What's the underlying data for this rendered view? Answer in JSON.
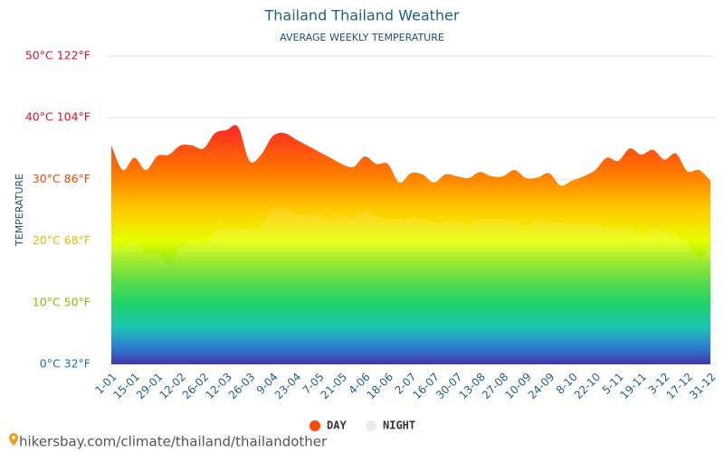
{
  "chart_data": {
    "type": "area",
    "title": "Thailand Thailand Weather",
    "subtitle": "AVERAGE WEEKLY TEMPERATURE",
    "y_label": "TEMPERATURE",
    "categories": [
      "1-01",
      null,
      "15-01",
      null,
      "29-01",
      null,
      "12-02",
      null,
      "26-02",
      null,
      "12-03",
      null,
      "26-03",
      null,
      "9-04",
      null,
      "23-04",
      null,
      "7-05",
      null,
      "21-05",
      null,
      "4-06",
      null,
      "18-06",
      null,
      "2-07",
      null,
      "16-07",
      null,
      "30-07",
      null,
      "13-08",
      null,
      "27-08",
      null,
      "10-09",
      null,
      "24-09",
      null,
      "8-10",
      null,
      "22-10",
      null,
      "5-11",
      null,
      "19-11",
      null,
      "3-12",
      null,
      "17-12",
      null,
      "31-12"
    ],
    "series": [
      {
        "name": "DAY",
        "color": "#ff4a00",
        "values": [
          35.5,
          31.5,
          33.5,
          31.5,
          33.8,
          34,
          35.5,
          35.5,
          35,
          37.5,
          38,
          38.5,
          33,
          34,
          37,
          37.5,
          36.5,
          35.5,
          34.5,
          33.5,
          32.5,
          32,
          33.7,
          32.5,
          32.5,
          29.5,
          31,
          30.8,
          29.5,
          30.8,
          30.5,
          30.2,
          31.2,
          30.5,
          30.5,
          31.5,
          30.2,
          30.3,
          31,
          29,
          29.8,
          30.5,
          31.5,
          33.5,
          33,
          35,
          34,
          34.8,
          33.2,
          34.2,
          31.3,
          31.5,
          29.8
        ]
      },
      {
        "name": "NIGHT",
        "color": "#e8ecf0",
        "values": [
          19.5,
          19,
          20,
          18,
          18,
          16.3,
          19,
          20,
          19.5,
          21.5,
          22,
          22,
          22,
          22.5,
          25,
          25.5,
          24.2,
          24.5,
          24.2,
          23.5,
          24.3,
          23.8,
          24.7,
          24,
          23.5,
          23.5,
          23.8,
          23.5,
          23,
          23.2,
          23.2,
          22.8,
          23.5,
          23.5,
          23.5,
          23.3,
          22.5,
          23.2,
          23.2,
          23,
          22.8,
          22.8,
          22.8,
          22.3,
          22,
          22,
          21,
          22,
          21.5,
          21,
          19.5,
          17.3,
          19.5
        ]
      }
    ],
    "ylim": [
      0,
      50
    ],
    "yticks": [
      {
        "value": 0,
        "label": "0°C 32°F"
      },
      {
        "value": 10,
        "label": "10°C 50°F"
      },
      {
        "value": 20,
        "label": "20°C 68°F"
      },
      {
        "value": 30,
        "label": "30°C 86°F"
      },
      {
        "value": 40,
        "label": "40°C 104°F"
      },
      {
        "value": 50,
        "label": "50°C 122°F"
      }
    ],
    "ytick_colors": [
      "#1a6fd0",
      "#7ec400",
      "#e0c000",
      "#ff4400",
      "#e0102a",
      "#e0102a"
    ],
    "grid": true,
    "legend": "bottom"
  },
  "footer": "hikersbay.com/climate/thailand/thailandother"
}
